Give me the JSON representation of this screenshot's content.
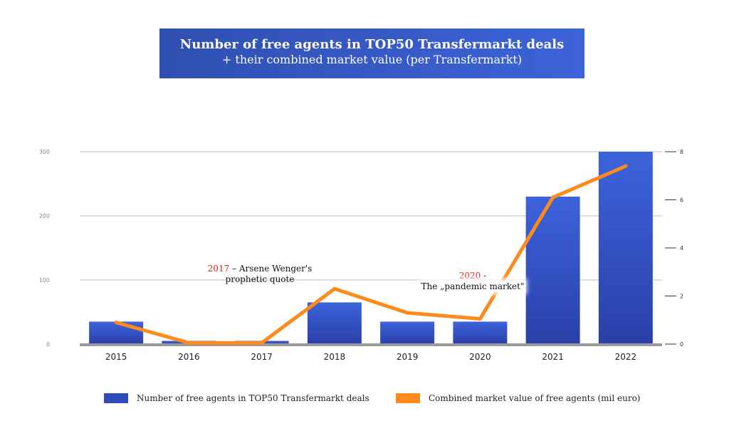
{
  "title": {
    "line1": "Number of free agents in TOP50 Transfermarkt deals",
    "line2": "+ their combined market value (per Transfermarkt)"
  },
  "colors": {
    "bars": "#2e49b8",
    "line": "#ff8a1c",
    "title_bg": "#3556c4",
    "annotation_year": "#e0241b"
  },
  "annotations": {
    "a2017": {
      "year": "2017",
      "rest": " – Arsene Wenger's",
      "line2": "prophetic quote"
    },
    "a2020": {
      "year": "2020",
      "rest": " -",
      "line2": "The „pandemic market\""
    }
  },
  "legend": {
    "bars": "Number of free agents in TOP50 Transfermarkt deals",
    "line": "Combined market value of free agents (mil euro)"
  },
  "chart_data": {
    "type": "bar",
    "categories": [
      "2015",
      "2016",
      "2017",
      "2018",
      "2019",
      "2020",
      "2021",
      "2022"
    ],
    "series": [
      {
        "name": "Number of free agents in TOP50 Transfermarkt deals",
        "type": "bar",
        "axis": "left",
        "values": [
          35,
          5,
          5,
          65,
          35,
          35,
          230,
          300
        ]
      },
      {
        "name": "Combined market value of free agents (mil euro)",
        "type": "line",
        "axis": "right",
        "values": [
          0.9,
          0.05,
          0.05,
          2.3,
          1.3,
          1.05,
          6.1,
          7.4
        ]
      }
    ],
    "left_axis": {
      "ylim": [
        0,
        300
      ],
      "ticks": [
        "0",
        "100",
        "200",
        "300"
      ]
    },
    "right_axis": {
      "ylim": [
        0,
        8
      ],
      "ticks": [
        "0",
        "2",
        "4",
        "6",
        "8"
      ]
    },
    "grid": true,
    "legend_position": "bottom"
  }
}
